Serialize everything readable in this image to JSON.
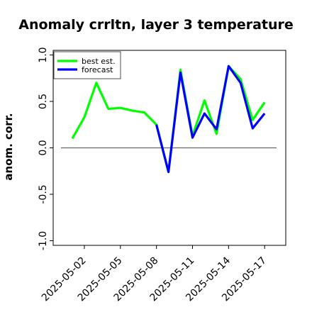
{
  "chart_data": {
    "type": "line",
    "title": "Anomaly crrltn, layer 3 temperature",
    "ylabel": "anom. corr.",
    "xlabel": "",
    "ylim": [
      -1.05,
      1.05
    ],
    "yticks": [
      -1.0,
      -0.5,
      0.0,
      0.5,
      1.0
    ],
    "ytick_labels": [
      "-1.0",
      "-0.5",
      "0.0",
      "0.5",
      "1.0"
    ],
    "xticks": [
      "2025-05-02",
      "2025-05-05",
      "2025-05-08",
      "2025-05-11",
      "2025-05-14",
      "2025-05-17"
    ],
    "highlight_tick": "2025-05-08",
    "highlight_color": "#228B22",
    "reference_line": 0.0,
    "x": [
      "2025-05-01",
      "2025-05-02",
      "2025-05-03",
      "2025-05-04",
      "2025-05-05",
      "2025-05-06",
      "2025-05-07",
      "2025-05-08",
      "2025-05-09",
      "2025-05-10",
      "2025-05-11",
      "2025-05-12",
      "2025-05-13",
      "2025-05-14",
      "2025-05-15",
      "2025-05-16",
      "2025-05-17"
    ],
    "series": [
      {
        "name": "best est.",
        "color": "#00ff00",
        "values": [
          0.1,
          0.33,
          0.7,
          0.42,
          0.43,
          0.4,
          0.38,
          0.25,
          -0.26,
          0.84,
          0.13,
          0.51,
          0.15,
          0.88,
          0.74,
          0.3,
          0.49
        ]
      },
      {
        "name": "forecast",
        "color": "#0000ff",
        "values": [
          null,
          null,
          null,
          null,
          null,
          null,
          null,
          0.25,
          -0.26,
          0.81,
          0.11,
          0.37,
          0.2,
          0.88,
          0.7,
          0.21,
          0.37
        ]
      }
    ],
    "legend_position": "top-left",
    "grid": false
  }
}
